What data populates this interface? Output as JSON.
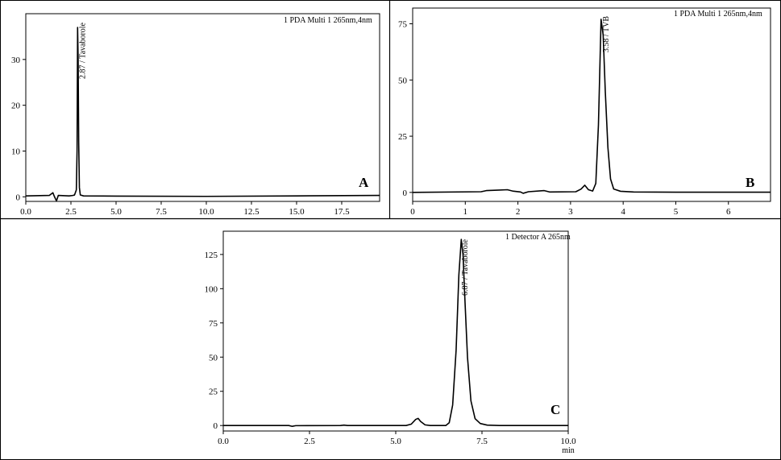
{
  "chart_data": [
    {
      "type": "line",
      "panel_label": "A",
      "detector_label": "1 PDA Multi 1 265nm,4nm",
      "xlim": [
        0,
        19.6
      ],
      "ylim": [
        -1,
        40
      ],
      "x_ticks": [
        "0.0",
        "2.5",
        "5.0",
        "7.5",
        "10.0",
        "12.5",
        "15.0",
        "17.5"
      ],
      "y_ticks": [
        "0",
        "10",
        "20",
        "30"
      ],
      "peak_label": "2.87 / Tavaborole",
      "peak_label_x": 2.87,
      "series": [
        {
          "points": [
            [
              0,
              0.2
            ],
            [
              1.3,
              0.3
            ],
            [
              1.5,
              0.9
            ],
            [
              1.58,
              0.1
            ],
            [
              1.7,
              -0.9
            ],
            [
              1.8,
              0.3
            ],
            [
              2.4,
              0.2
            ],
            [
              2.6,
              0.3
            ],
            [
              2.7,
              0.4
            ],
            [
              2.8,
              1.5
            ],
            [
              2.84,
              10
            ],
            [
              2.87,
              37
            ],
            [
              2.9,
              30
            ],
            [
              2.93,
              12
            ],
            [
              2.97,
              2
            ],
            [
              3.02,
              0.4
            ],
            [
              3.2,
              0.2
            ],
            [
              5,
              0.15
            ],
            [
              10,
              0.1
            ],
            [
              15,
              0.2
            ],
            [
              19.6,
              0.3
            ]
          ]
        }
      ]
    },
    {
      "type": "line",
      "panel_label": "B",
      "detector_label": "1 PDA Multi 1 265nm,4nm",
      "xlim": [
        0,
        6.8
      ],
      "ylim": [
        -4,
        82
      ],
      "x_ticks": [
        "0",
        "1",
        "2",
        "3",
        "4",
        "5",
        "6"
      ],
      "y_ticks": [
        "0",
        "25",
        "50",
        "75"
      ],
      "peak_label": "3.58 / TVB",
      "peak_label_x": 3.58,
      "series": [
        {
          "points": [
            [
              0,
              0
            ],
            [
              1.3,
              0.3
            ],
            [
              1.4,
              0.8
            ],
            [
              1.6,
              1
            ],
            [
              1.8,
              1.2
            ],
            [
              1.9,
              0.6
            ],
            [
              2.05,
              0.2
            ],
            [
              2.1,
              -0.4
            ],
            [
              2.2,
              0.3
            ],
            [
              2.5,
              0.8
            ],
            [
              2.6,
              0.2
            ],
            [
              3.1,
              0.3
            ],
            [
              3.2,
              1.5
            ],
            [
              3.27,
              3.2
            ],
            [
              3.34,
              1.2
            ],
            [
              3.42,
              0.6
            ],
            [
              3.48,
              4
            ],
            [
              3.53,
              30
            ],
            [
              3.58,
              77
            ],
            [
              3.62,
              70
            ],
            [
              3.66,
              45
            ],
            [
              3.71,
              20
            ],
            [
              3.76,
              6
            ],
            [
              3.82,
              1.5
            ],
            [
              3.95,
              0.5
            ],
            [
              4.2,
              0.2
            ],
            [
              5,
              0.1
            ],
            [
              6.8,
              0.1
            ]
          ]
        }
      ]
    },
    {
      "type": "line",
      "panel_label": "C",
      "detector_label": "1 Detector A 265nm",
      "xlim": [
        0,
        10
      ],
      "ylim": [
        -4,
        142
      ],
      "x_ticks": [
        "0.0",
        "2.5",
        "5.0",
        "7.5",
        "10.0"
      ],
      "y_ticks": [
        "0",
        "25",
        "50",
        "75",
        "100",
        "125"
      ],
      "x_unit": "min",
      "peak_label": "6.87 / Tavaborole",
      "peak_label_x": 6.87,
      "series": [
        {
          "points": [
            [
              0,
              0
            ],
            [
              1.9,
              0
            ],
            [
              2.0,
              -0.6
            ],
            [
              2.1,
              -0.1
            ],
            [
              3.4,
              0
            ],
            [
              3.5,
              0.3
            ],
            [
              3.6,
              0
            ],
            [
              5.3,
              0
            ],
            [
              5.45,
              1
            ],
            [
              5.58,
              4.5
            ],
            [
              5.65,
              5.2
            ],
            [
              5.72,
              3
            ],
            [
              5.85,
              0.5
            ],
            [
              6.0,
              0
            ],
            [
              6.45,
              0
            ],
            [
              6.55,
              2
            ],
            [
              6.65,
              15
            ],
            [
              6.75,
              55
            ],
            [
              6.83,
              110
            ],
            [
              6.9,
              136
            ],
            [
              6.95,
              125
            ],
            [
              7.0,
              95
            ],
            [
              7.08,
              50
            ],
            [
              7.18,
              18
            ],
            [
              7.3,
              5
            ],
            [
              7.45,
              1.5
            ],
            [
              7.65,
              0.3
            ],
            [
              8,
              0
            ],
            [
              10,
              0
            ]
          ]
        }
      ]
    }
  ]
}
